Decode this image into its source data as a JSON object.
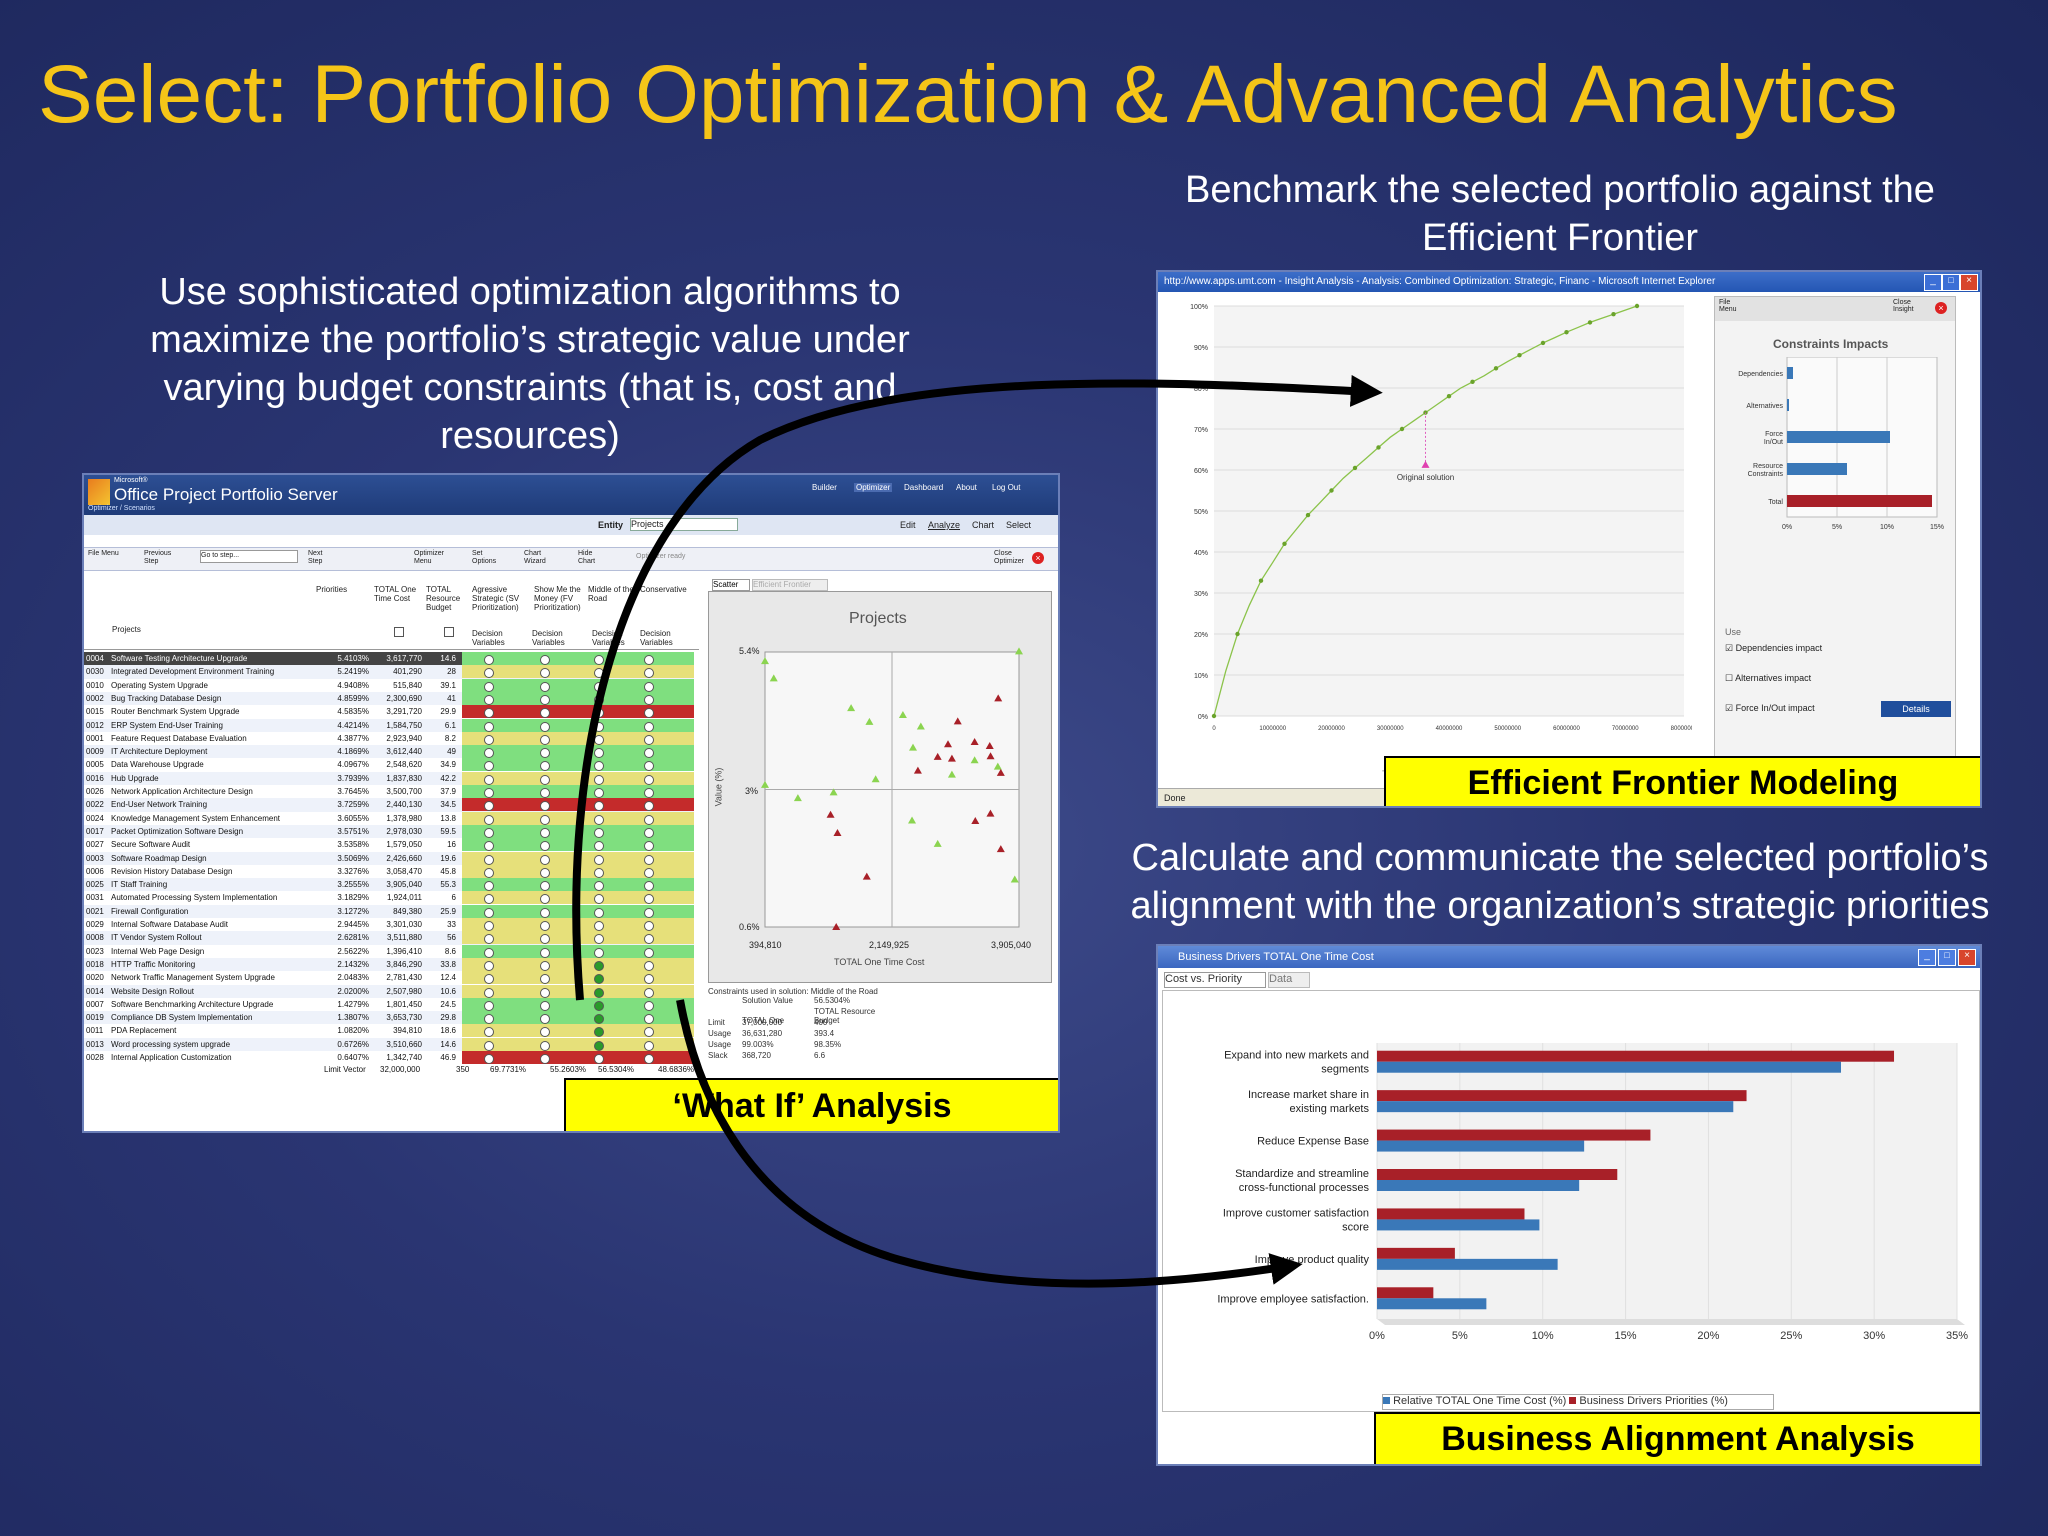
{
  "slide": {
    "title": "Select: Portfolio Optimization & Advanced Analytics",
    "caption_left": "Use sophisticated optimization algorithms to maximize the portfolio’s strategic value under varying budget constraints (that is, cost and resources)",
    "caption_top_right": "Benchmark the selected portfolio against the Efficient Frontier",
    "caption_mid_right": "Calculate and communicate the selected portfolio’s alignment with the organization’s strategic priorities",
    "label_what_if": "‘What If’ Analysis",
    "label_efficient": "Efficient Frontier Modeling",
    "label_alignment": "Business Alignment Analysis"
  },
  "project_window": {
    "brand_small": "Microsoft®",
    "brand": "Office Project Portfolio Server",
    "breadcrumb": "Optimizer / Scenarios",
    "nav": [
      "Builder",
      "Optimizer",
      "Dashboard",
      "About",
      "Log Out"
    ],
    "entity_label": "Entity",
    "entity_value": "Projects",
    "subnav": [
      "Edit",
      "Analyze",
      "Chart",
      "Select"
    ],
    "toolbar": [
      "File Menu",
      "Previous Step",
      "Go to step...",
      "Next Step",
      "Optimizer Menu",
      "Set Options",
      "Chart Wizard",
      "Hide Chart",
      "Optimizer ready",
      "Close Optimizer"
    ],
    "col_headers": [
      "Priorities",
      "TOTAL One Time Cost",
      "TOTAL Resource Budget",
      "Agressive Strategic (SV Prioritization)",
      "Show Me the Money (FV Prioritization)",
      "Middle of the Road",
      "Conservative"
    ],
    "projects_header": "Projects",
    "dv_label": "Decision Variables",
    "rows": [
      {
        "id": "0004",
        "name": "Software Testing Architecture Upgrade",
        "pri": "5.4103%",
        "cost": "3,617,770",
        "res": "14.6"
      },
      {
        "id": "0030",
        "name": "Integrated Development Environment Training",
        "pri": "5.2419%",
        "cost": "401,290",
        "res": "28"
      },
      {
        "id": "0010",
        "name": "Operating System Upgrade",
        "pri": "4.9408%",
        "cost": "515,840",
        "res": "39.1"
      },
      {
        "id": "0002",
        "name": "Bug Tracking Database Design",
        "pri": "4.8599%",
        "cost": "2,300,690",
        "res": "41"
      },
      {
        "id": "0015",
        "name": "Router Benchmark System Upgrade",
        "pri": "4.5835%",
        "cost": "3,291,720",
        "res": "29.9"
      },
      {
        "id": "0012",
        "name": "ERP System End-User Training",
        "pri": "4.4214%",
        "cost": "1,584,750",
        "res": "6.1"
      },
      {
        "id": "0001",
        "name": "Feature Request Database Evaluation",
        "pri": "4.3877%",
        "cost": "2,923,940",
        "res": "8.2"
      },
      {
        "id": "0009",
        "name": "IT Architecture Deployment",
        "pri": "4.1869%",
        "cost": "3,612,440",
        "res": "49"
      },
      {
        "id": "0005",
        "name": "Data Warehouse Upgrade",
        "pri": "4.0967%",
        "cost": "2,548,620",
        "res": "34.9"
      },
      {
        "id": "0016",
        "name": "Hub Upgrade",
        "pri": "3.7939%",
        "cost": "1,837,830",
        "res": "42.2"
      },
      {
        "id": "0026",
        "name": "Network Application Architecture Design",
        "pri": "3.7645%",
        "cost": "3,500,700",
        "res": "37.9"
      },
      {
        "id": "0022",
        "name": "End-User Network Training",
        "pri": "3.7259%",
        "cost": "2,440,130",
        "res": "34.5"
      },
      {
        "id": "0024",
        "name": "Knowledge Management System Enhancement",
        "pri": "3.6055%",
        "cost": "1,378,980",
        "res": "13.8"
      },
      {
        "id": "0017",
        "name": "Packet Optimization Software Design",
        "pri": "3.5751%",
        "cost": "2,978,030",
        "res": "59.5"
      },
      {
        "id": "0027",
        "name": "Secure Software Audit",
        "pri": "3.5358%",
        "cost": "1,579,050",
        "res": "16"
      },
      {
        "id": "0003",
        "name": "Software Roadmap Design",
        "pri": "3.5069%",
        "cost": "2,426,660",
        "res": "19.6"
      },
      {
        "id": "0006",
        "name": "Revision History Database Design",
        "pri": "3.3276%",
        "cost": "3,058,470",
        "res": "45.8"
      },
      {
        "id": "0025",
        "name": "IT Staff Training",
        "pri": "3.2555%",
        "cost": "3,905,040",
        "res": "55.3"
      },
      {
        "id": "0031",
        "name": "Automated Processing System Implementation",
        "pri": "3.1829%",
        "cost": "1,924,011",
        "res": "6"
      },
      {
        "id": "0021",
        "name": "Firewall Configuration",
        "pri": "3.1272%",
        "cost": "849,380",
        "res": "25.9"
      },
      {
        "id": "0029",
        "name": "Internal Software Database Audit",
        "pri": "2.9445%",
        "cost": "3,301,030",
        "res": "33"
      },
      {
        "id": "0008",
        "name": "IT Vendor System Rollout",
        "pri": "2.6281%",
        "cost": "3,511,880",
        "res": "56"
      },
      {
        "id": "0023",
        "name": "Internal Web Page Design",
        "pri": "2.5622%",
        "cost": "1,396,410",
        "res": "8.6"
      },
      {
        "id": "0018",
        "name": "HTTP Traffic Monitoring",
        "pri": "2.1432%",
        "cost": "3,846,290",
        "res": "33.8"
      },
      {
        "id": "0020",
        "name": "Network Traffic Management System Upgrade",
        "pri": "2.0483%",
        "cost": "2,781,430",
        "res": "12.4"
      },
      {
        "id": "0014",
        "name": "Website Design Rollout",
        "pri": "2.0200%",
        "cost": "2,507,980",
        "res": "10.6"
      },
      {
        "id": "0007",
        "name": "Software Benchmarking Architecture Upgrade",
        "pri": "1.4279%",
        "cost": "1,801,450",
        "res": "24.5"
      },
      {
        "id": "0019",
        "name": "Compliance DB System Implementation",
        "pri": "1.3807%",
        "cost": "3,653,730",
        "res": "29.8"
      },
      {
        "id": "0011",
        "name": "PDA Replacement",
        "pri": "1.0820%",
        "cost": "394,810",
        "res": "18.6"
      },
      {
        "id": "0013",
        "name": "Word processing system upgrade",
        "pri": "0.6726%",
        "cost": "3,510,660",
        "res": "14.6"
      },
      {
        "id": "0028",
        "name": "Internal Application Customization",
        "pri": "0.6407%",
        "cost": "1,342,740",
        "res": "46.9"
      }
    ],
    "footer": {
      "label": "Limit Vector",
      "cost": "32,000,000",
      "res": "350",
      "v1": "69.7731%",
      "v2": "55.2603%",
      "v3": "56.5304%",
      "v4": "48.6836%"
    },
    "tabs": [
      "Scatter",
      "Efficient Frontier"
    ],
    "scatter_title": "Projects",
    "scatter_ylabel": "Value (%)",
    "scatter_xlabel": "TOTAL One Time Cost",
    "scatter_yticks": [
      "5.4%",
      "3%",
      "0.6%"
    ],
    "scatter_xticks": [
      "394,810",
      "2,149,925",
      "3,905,040"
    ],
    "constraints_title": "Constraints used in solution: Middle of the Road",
    "constraints": [
      [
        "",
        "Solution Value",
        "56.5304%"
      ],
      [
        "",
        "TOTAL One",
        "TOTAL Resource Budget"
      ],
      [
        "Limit",
        "37,000,000",
        "400"
      ],
      [
        "Usage",
        "36,631,280",
        "393.4"
      ],
      [
        "Usage",
        "99.003%",
        "98.35%"
      ],
      [
        "Slack",
        "368,720",
        "6.6"
      ]
    ]
  },
  "ef_window": {
    "title": "http://www.apps.umt.com - Insight Analysis - Analysis: Combined Optimization: Strategic, Financ - Microsoft Internet Explorer",
    "status": "Done",
    "file_menu": "File Menu",
    "close_insight": "Close Insight",
    "impacts_title": "Constraints Impacts",
    "impact_labels": [
      "Dependencies",
      "Alternatives",
      "Force In/Out",
      "Resource Constraints",
      "Total"
    ],
    "impact_ticks": [
      "0%",
      "5%",
      "10%",
      "15%"
    ],
    "use_label": "Use",
    "checks": [
      "Dependencies impact",
      "Alternatives impact",
      "Force In/Out impact"
    ],
    "details": "Details",
    "original_solution": "Original solution",
    "xaxis_label": "TO",
    "yticks": [
      "100%",
      "90%",
      "80%",
      "70%",
      "60%",
      "50%",
      "40%",
      "30%",
      "20%",
      "10%",
      "0%"
    ],
    "xticks": [
      "0",
      "10000000",
      "20000000",
      "30000000",
      "40000000",
      "50000000",
      "60000000",
      "70000000",
      "80000000"
    ]
  },
  "bd_window": {
    "title": "Business Drivers TOTAL One Time Cost",
    "tabs": [
      "Cost vs. Priority",
      "Data"
    ],
    "legend": [
      "Relative TOTAL One Time Cost (%)",
      "Business Drivers Priorities (%)"
    ]
  },
  "chart_data": [
    {
      "type": "line",
      "name": "Efficient Frontier",
      "x": [
        0,
        2000000,
        4000000,
        6000000,
        8000000,
        10000000,
        12000000,
        14000000,
        16000000,
        18000000,
        20000000,
        22000000,
        24000000,
        26000000,
        28000000,
        30000000,
        32000000,
        34000000,
        36000000,
        38000000,
        40000000,
        42000000,
        44000000,
        46000000,
        48000000,
        50000000,
        52000000,
        54000000,
        56000000,
        58000000,
        60000000,
        62000000,
        64000000,
        66000000,
        68000000,
        70000000,
        72000000
      ],
      "y": [
        0,
        11,
        20,
        27,
        33,
        37.5,
        42,
        45.5,
        49,
        52,
        55,
        58,
        60.5,
        63,
        65.5,
        68,
        70,
        72,
        74,
        76,
        78,
        80,
        81.5,
        83,
        84.8,
        86.5,
        88,
        89.5,
        91,
        92.3,
        93.6,
        94.8,
        96,
        97,
        98,
        99,
        100
      ],
      "original_solution": {
        "x": 36000000,
        "y": 61
      },
      "ylim": [
        0,
        100
      ],
      "xlim": [
        0,
        80000000
      ]
    },
    {
      "type": "bar",
      "name": "Constraints Impacts",
      "categories": [
        "Dependencies",
        "Alternatives",
        "Force In/Out",
        "Resource Constraints",
        "Total"
      ],
      "values": [
        0.6,
        0.2,
        10.3,
        6.0,
        14.5
      ],
      "xlim": [
        0,
        15
      ]
    },
    {
      "type": "scatter",
      "name": "Projects",
      "x_label": "TOTAL One Time Cost",
      "y_label": "Value (%)",
      "xlim": [
        394810,
        3905040
      ],
      "ylim": [
        0.6,
        5.4
      ],
      "selected": [
        [
          394810,
          5.24
        ],
        [
          515840,
          4.94
        ],
        [
          3905040,
          5.41
        ],
        [
          1584750,
          4.42
        ],
        [
          1924011,
          3.18
        ],
        [
          2440130,
          3.73
        ],
        [
          849380,
          2.85
        ],
        [
          1342740,
          2.95
        ],
        [
          2300690,
          4.3
        ],
        [
          2548620,
          4.1
        ],
        [
          2781430,
          2.05
        ],
        [
          2978030,
          3.26
        ],
        [
          3291720,
          3.51
        ],
        [
          3612440,
          3.4
        ],
        [
          3846290,
          1.43
        ],
        [
          394810,
          3.08
        ],
        [
          1837830,
          4.18
        ],
        [
          2426660,
          2.46
        ]
      ],
      "unselected": [
        [
          3617770,
          4.59
        ],
        [
          3058470,
          4.19
        ],
        [
          2923940,
          3.79
        ],
        [
          3291720,
          3.83
        ],
        [
          3500700,
          3.76
        ],
        [
          3511880,
          3.58
        ],
        [
          2978030,
          3.54
        ],
        [
          1301030,
          2.56
        ],
        [
          3301030,
          2.45
        ],
        [
          1396410,
          2.24
        ],
        [
          2507980,
          3.33
        ],
        [
          3653730,
          1.96
        ],
        [
          1801450,
          1.48
        ],
        [
          3510660,
          2.58
        ],
        [
          1378980,
          0.6
        ],
        [
          2781430,
          3.57
        ],
        [
          3653730,
          3.29
        ]
      ]
    },
    {
      "type": "bar",
      "name": "Business Drivers",
      "categories": [
        "Expand into new markets and segments",
        "Increase market share in existing markets",
        "Reduce Expense Base",
        "Standardize and streamline cross-functional processes",
        "Improve customer satisfaction score",
        "Improve product quality",
        "Improve employee satisfaction."
      ],
      "series": [
        {
          "name": "Relative TOTAL One Time Cost (%)",
          "values": [
            28,
            21.5,
            12.5,
            12.2,
            9.8,
            10.9,
            6.6
          ]
        },
        {
          "name": "Business Drivers Priorities (%)",
          "values": [
            31.2,
            22.3,
            16.5,
            14.5,
            8.9,
            4.7,
            3.4
          ]
        }
      ],
      "xticks": [
        "0%",
        "5%",
        "10%",
        "15%",
        "20%",
        "25%",
        "30%",
        "35%"
      ],
      "xlim": [
        0,
        35
      ]
    }
  ],
  "colors": {
    "title": "#f5c518",
    "label_bg": "#ffff00",
    "blue_bar": "#3a78b8",
    "red_bar": "#a82028",
    "green": "#8bd450",
    "green_cell": "#7fdf7f",
    "yellow_cell": "#e6e07a",
    "red_cell": "#c42b2b"
  }
}
